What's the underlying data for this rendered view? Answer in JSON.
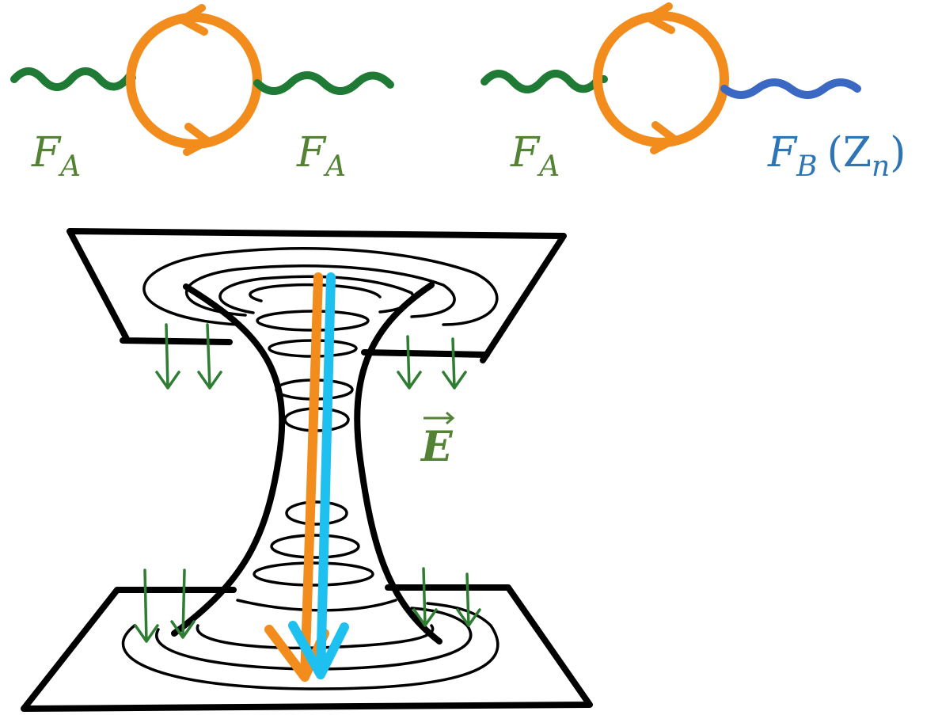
{
  "diagrams": [
    {
      "left_label": {
        "symbol": "F",
        "subscript": "A"
      },
      "right_label": {
        "symbol": "F",
        "subscript": "A"
      }
    },
    {
      "left_label": {
        "symbol": "F",
        "subscript": "A"
      },
      "right_label": {
        "symbol": "F",
        "subscript": "B",
        "extra": "(Z",
        "extra_subscript": "n",
        "close": ")"
      }
    }
  ],
  "field_label": {
    "symbol": "E"
  }
}
